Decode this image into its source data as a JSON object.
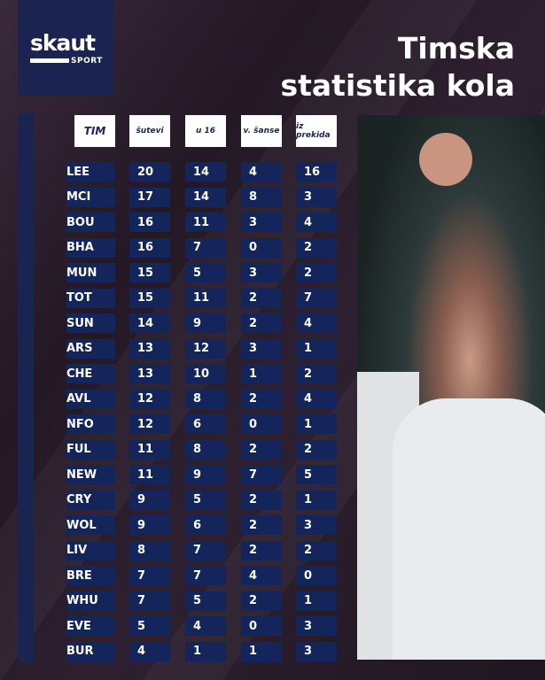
{
  "brand": {
    "name": "skaut",
    "sub": "SPORT"
  },
  "title": {
    "line1": "Timska",
    "line2": "statistika kola"
  },
  "headers": [
    "TIM",
    "šutevi",
    "u 16",
    "v. šanse",
    "iz prekida"
  ],
  "rows": [
    {
      "team": "LEE",
      "v": [
        "20",
        "14",
        "4",
        "16"
      ]
    },
    {
      "team": "MCI",
      "v": [
        "17",
        "14",
        "8",
        "3"
      ]
    },
    {
      "team": "BOU",
      "v": [
        "16",
        "11",
        "3",
        "4"
      ]
    },
    {
      "team": "BHA",
      "v": [
        "16",
        "7",
        "0",
        "2"
      ]
    },
    {
      "team": "MUN",
      "v": [
        "15",
        "5",
        "3",
        "2"
      ]
    },
    {
      "team": "TOT",
      "v": [
        "15",
        "11",
        "2",
        "7"
      ]
    },
    {
      "team": "SUN",
      "v": [
        "14",
        "9",
        "2",
        "4"
      ]
    },
    {
      "team": "ARS",
      "v": [
        "13",
        "12",
        "3",
        "1"
      ]
    },
    {
      "team": "CHE",
      "v": [
        "13",
        "10",
        "1",
        "2"
      ]
    },
    {
      "team": "AVL",
      "v": [
        "12",
        "8",
        "2",
        "4"
      ]
    },
    {
      "team": "NFO",
      "v": [
        "12",
        "6",
        "0",
        "1"
      ]
    },
    {
      "team": "FUL",
      "v": [
        "11",
        "8",
        "2",
        "2"
      ]
    },
    {
      "team": "NEW",
      "v": [
        "11",
        "9",
        "7",
        "5"
      ]
    },
    {
      "team": "CRY",
      "v": [
        "9",
        "5",
        "2",
        "1"
      ]
    },
    {
      "team": "WOL",
      "v": [
        "9",
        "6",
        "2",
        "3"
      ]
    },
    {
      "team": "LIV",
      "v": [
        "8",
        "7",
        "2",
        "2"
      ]
    },
    {
      "team": "BRE",
      "v": [
        "7",
        "7",
        "4",
        "0"
      ]
    },
    {
      "team": "WHU",
      "v": [
        "7",
        "5",
        "2",
        "1"
      ]
    },
    {
      "team": "EVE",
      "v": [
        "5",
        "4",
        "0",
        "3"
      ]
    },
    {
      "team": "BUR",
      "v": [
        "4",
        "1",
        "1",
        "3"
      ]
    }
  ]
}
